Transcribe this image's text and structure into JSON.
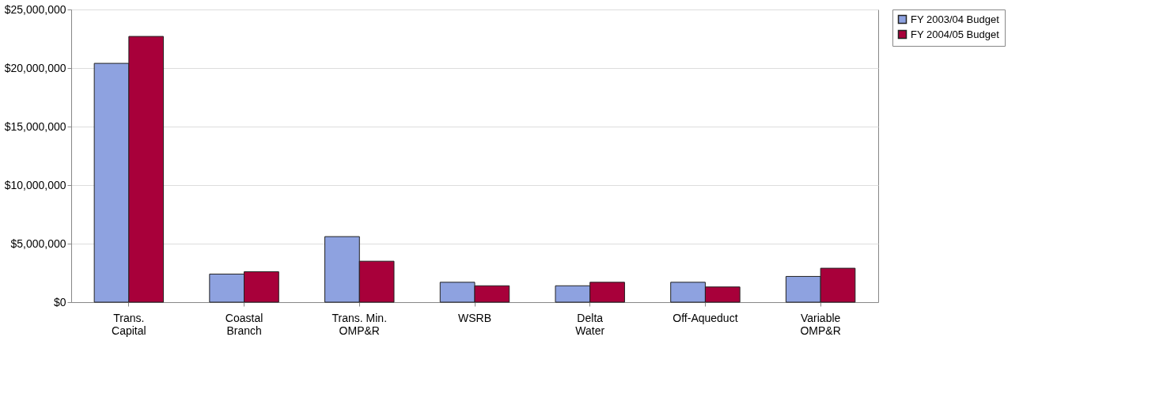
{
  "chart_data": {
    "type": "bar",
    "categories": [
      "Trans. Capital",
      "Coastal Branch",
      "Trans. Min. OMP&R",
      "WSRB",
      "Delta Water",
      "Off-Aqueduct",
      "Variable OMP&R"
    ],
    "series": [
      {
        "name": "FY 2003/04 Budget",
        "color": "#8ea2e0",
        "values": [
          20400000,
          2400000,
          5600000,
          1700000,
          1400000,
          1700000,
          2200000
        ]
      },
      {
        "name": "FY 2004/05 Budget",
        "color": "#a8003a",
        "values": [
          22700000,
          2600000,
          3500000,
          1400000,
          1700000,
          1300000,
          2900000
        ]
      }
    ],
    "ylim": [
      0,
      25000000
    ],
    "yticks": [
      {
        "value": 0,
        "label": "$0"
      },
      {
        "value": 5000000,
        "label": "$5,000,000"
      },
      {
        "value": 10000000,
        "label": "$10,000,000"
      },
      {
        "value": 15000000,
        "label": "$15,000,000"
      },
      {
        "value": 20000000,
        "label": "$20,000,000"
      },
      {
        "value": 25000000,
        "label": "$25,000,000"
      }
    ],
    "grid": "y",
    "legend": "right"
  }
}
